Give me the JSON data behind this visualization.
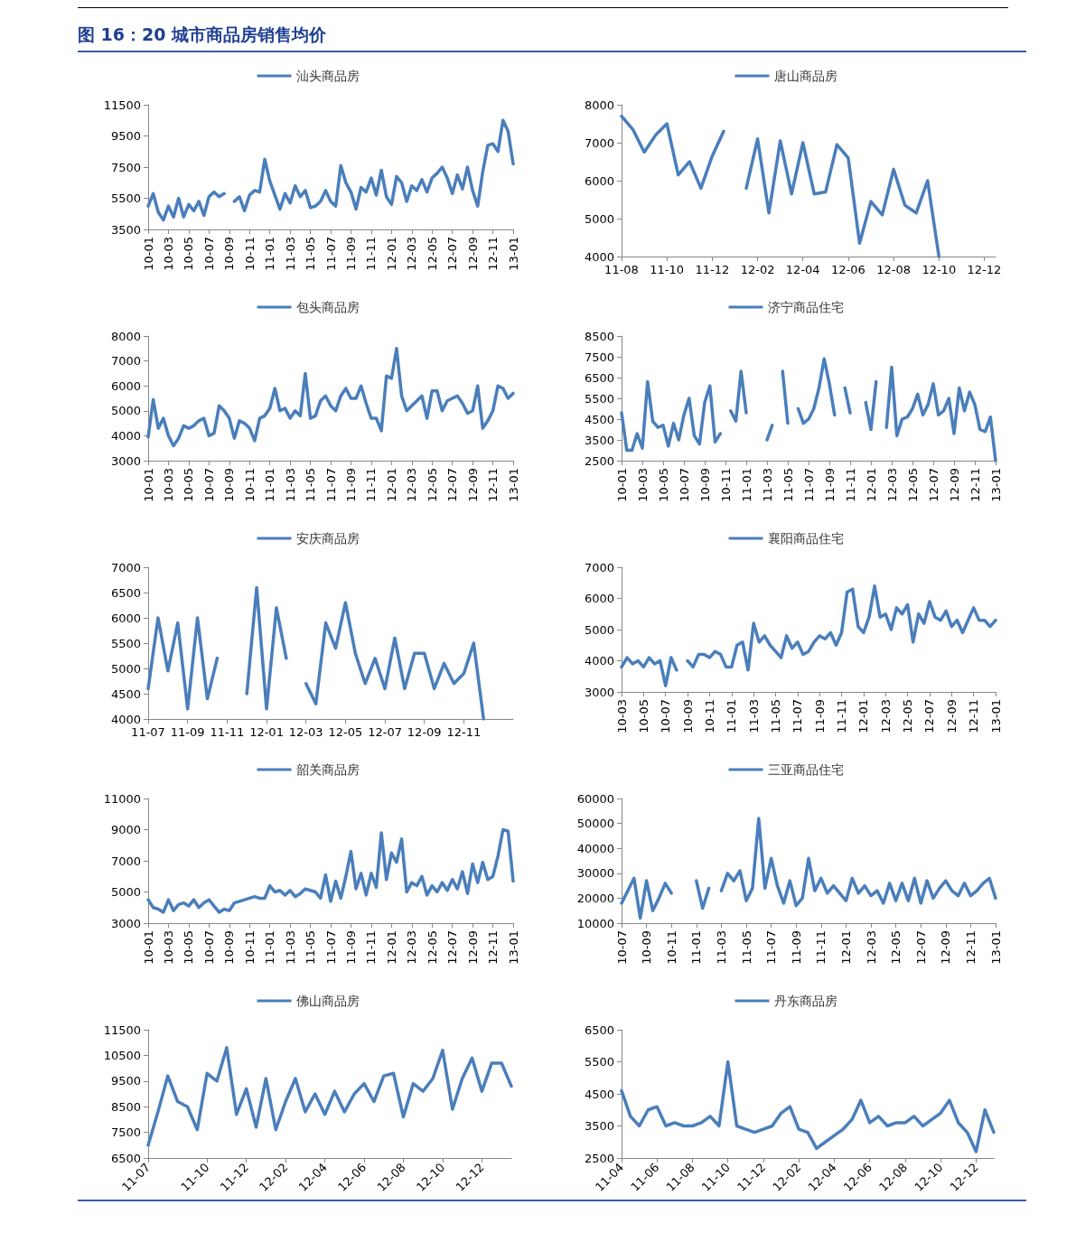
{
  "chart_data": [
    {
      "type": "other",
      "title": "图 16：20 城市商品房销售均价"
    },
    {
      "type": "line",
      "legend": "top",
      "ylim": [
        3500,
        11500
      ],
      "yticks": [
        3500,
        5500,
        7500,
        9500,
        11500
      ],
      "categories": [
        "10-01",
        null,
        null,
        null,
        "10-03",
        null,
        null,
        null,
        "10-05",
        null,
        null,
        null,
        "10-07",
        null,
        null,
        null,
        "10-09",
        null,
        null,
        null,
        "10-11",
        null,
        null,
        null,
        "11-01",
        null,
        null,
        null,
        "11-03",
        null,
        null,
        null,
        "11-05",
        null,
        null,
        null,
        "11-07",
        null,
        null,
        null,
        "11-09",
        null,
        null,
        null,
        "11-11",
        null,
        null,
        null,
        "12-01",
        null,
        null,
        null,
        "12-03",
        null,
        null,
        null,
        "12-05",
        null,
        null,
        null,
        "12-07",
        null,
        null,
        null,
        "12-09",
        null,
        null,
        null,
        "12-11",
        null,
        null,
        null,
        "13-01"
      ],
      "series": [
        {
          "name": "汕头商品房",
          "color": "#4a7ebb",
          "values": [
            5000,
            5800,
            4600,
            4100,
            5000,
            4300,
            5500,
            4300,
            5100,
            4700,
            5300,
            4400,
            5600,
            5900,
            5600,
            5800,
            null,
            5300,
            5600,
            4700,
            5700,
            6000,
            5900,
            8000,
            6600,
            5700,
            4800,
            5800,
            5200,
            6300,
            5600,
            6000,
            4900,
            5000,
            5300,
            6000,
            5300,
            5000,
            7600,
            6500,
            5900,
            4800,
            6200,
            5900,
            6800,
            5700,
            7300,
            5600,
            5100,
            6900,
            6500,
            5300,
            6300,
            6000,
            6700,
            5900,
            6800,
            7100,
            7500,
            6800,
            5800,
            7000,
            6100,
            7500,
            6000,
            5000,
            7200,
            8900,
            9000,
            8500,
            10500,
            9800,
            7700
          ]
        }
      ]
    },
    {
      "type": "line",
      "legend": "top",
      "ylim": [
        4000,
        8000
      ],
      "yticks": [
        4000,
        5000,
        6000,
        7000,
        8000
      ],
      "categories": [
        "11-08",
        null,
        null,
        null,
        "11-10",
        null,
        null,
        null,
        "11-12",
        null,
        null,
        null,
        "12-02",
        null,
        null,
        null,
        "12-04",
        null,
        null,
        null,
        "12-06",
        null,
        null,
        null,
        "12-08",
        null,
        null,
        null,
        "12-10",
        null,
        null,
        null,
        "12-12",
        null
      ],
      "series": [
        {
          "name": "唐山商品房",
          "color": "#4a7ebb",
          "values": [
            7700,
            7350,
            6750,
            7200,
            7500,
            6150,
            6500,
            5800,
            6650,
            7300,
            null,
            5800,
            7100,
            5150,
            7050,
            5650,
            7000,
            5650,
            5700,
            6950,
            6600,
            4350,
            5450,
            5100,
            6300,
            5350,
            5150,
            6000,
            4000,
            null,
            null,
            null,
            null,
            null
          ]
        }
      ]
    },
    {
      "type": "line",
      "legend": "top",
      "ylim": [
        3000,
        8000
      ],
      "yticks": [
        3000,
        4000,
        5000,
        6000,
        7000,
        8000
      ],
      "categories": [
        "10-01",
        null,
        null,
        null,
        "10-03",
        null,
        null,
        null,
        "10-05",
        null,
        null,
        null,
        "10-07",
        null,
        null,
        null,
        "10-09",
        null,
        null,
        null,
        "10-11",
        null,
        null,
        null,
        "11-01",
        null,
        null,
        null,
        "11-03",
        null,
        null,
        null,
        "11-05",
        null,
        null,
        null,
        "11-07",
        null,
        null,
        null,
        "11-09",
        null,
        null,
        null,
        "11-11",
        null,
        null,
        null,
        "12-01",
        null,
        null,
        null,
        "12-03",
        null,
        null,
        null,
        "12-05",
        null,
        null,
        null,
        "12-07",
        null,
        null,
        null,
        "12-09",
        null,
        null,
        null,
        "12-11",
        null,
        null,
        null,
        "13-01"
      ],
      "series": [
        {
          "name": "包头商品房",
          "color": "#4a7ebb",
          "values": [
            3950,
            5450,
            4300,
            4700,
            4000,
            3600,
            3900,
            4400,
            4300,
            4400,
            4600,
            4700,
            4000,
            4100,
            5200,
            5000,
            4700,
            3900,
            4600,
            4500,
            4300,
            3800,
            4700,
            4800,
            5100,
            5900,
            5000,
            5100,
            4700,
            5000,
            4800,
            6500,
            4700,
            4800,
            5400,
            5600,
            5200,
            5000,
            5600,
            5900,
            5500,
            5500,
            6000,
            5300,
            4700,
            4700,
            4200,
            6400,
            6300,
            7500,
            5600,
            5000,
            5200,
            5400,
            5600,
            4700,
            5800,
            5800,
            5000,
            5400,
            5500,
            5600,
            5300,
            4900,
            5000,
            6000,
            4300,
            4600,
            5000,
            6000,
            5900,
            5500,
            5700
          ]
        }
      ]
    },
    {
      "type": "line",
      "legend": "top",
      "ylim": [
        2500,
        8500
      ],
      "yticks": [
        2500,
        3500,
        4500,
        5500,
        6500,
        7500,
        8500
      ],
      "categories": [
        "10-01",
        null,
        null,
        null,
        "10-03",
        null,
        null,
        null,
        "10-05",
        null,
        null,
        null,
        "10-07",
        null,
        null,
        null,
        "10-09",
        null,
        null,
        null,
        "10-11",
        null,
        null,
        null,
        "11-01",
        null,
        null,
        null,
        "11-03",
        null,
        null,
        null,
        "11-05",
        null,
        null,
        null,
        "11-07",
        null,
        null,
        null,
        "11-09",
        null,
        null,
        null,
        "11-11",
        null,
        null,
        null,
        "12-01",
        null,
        null,
        null,
        "12-03",
        null,
        null,
        null,
        "12-05",
        null,
        null,
        null,
        "12-07",
        null,
        null,
        null,
        "12-09",
        null,
        null,
        null,
        "12-11",
        null,
        null,
        null,
        "13-01"
      ],
      "series": [
        {
          "name": "济宁商品住宅",
          "color": "#4a7ebb",
          "values": [
            4800,
            3000,
            3000,
            3800,
            3100,
            6300,
            4400,
            4100,
            4200,
            3200,
            4300,
            3500,
            4700,
            5500,
            3700,
            3300,
            5300,
            6100,
            3400,
            3800,
            null,
            4900,
            4400,
            6800,
            4800,
            null,
            null,
            null,
            3500,
            4200,
            null,
            6800,
            4300,
            null,
            5000,
            4300,
            4500,
            5000,
            6000,
            7400,
            6200,
            4700,
            null,
            6000,
            4800,
            null,
            null,
            5300,
            4000,
            6300,
            null,
            4100,
            7000,
            3700,
            4500,
            4600,
            5000,
            5700,
            4700,
            5200,
            6200,
            4700,
            4900,
            5500,
            3800,
            6000,
            4900,
            5800,
            5200,
            4000,
            3900,
            4600,
            2500
          ]
        }
      ]
    },
    {
      "type": "line",
      "legend": "top",
      "ylim": [
        4000,
        7000
      ],
      "yticks": [
        4000,
        4500,
        5000,
        5500,
        6000,
        6500,
        7000
      ],
      "categories": [
        "11-07",
        null,
        null,
        null,
        "11-09",
        null,
        null,
        null,
        "11-11",
        null,
        null,
        null,
        "12-01",
        null,
        null,
        null,
        "12-03",
        null,
        null,
        null,
        "12-05",
        null,
        null,
        null,
        "12-07",
        null,
        null,
        null,
        "12-09",
        null,
        null,
        null,
        "12-11",
        null,
        null,
        null,
        null,
        null
      ],
      "series": [
        {
          "name": "安庆商品房",
          "color": "#4a7ebb",
          "values": [
            4600,
            6000,
            4950,
            5900,
            4200,
            6000,
            4400,
            5200,
            null,
            null,
            4500,
            6600,
            4200,
            6200,
            5200,
            null,
            4700,
            4300,
            5900,
            5400,
            6300,
            5300,
            4700,
            5200,
            4600,
            5600,
            4600,
            5300,
            5300,
            4600,
            5100,
            4700,
            4900,
            5500,
            4000,
            null,
            null,
            null
          ]
        }
      ]
    },
    {
      "type": "line",
      "legend": "top",
      "ylim": [
        3000,
        7000
      ],
      "yticks": [
        3000,
        4000,
        5000,
        6000,
        7000
      ],
      "categories": [
        "10-03",
        null,
        null,
        null,
        "10-05",
        null,
        null,
        null,
        "10-07",
        null,
        null,
        null,
        "10-09",
        null,
        null,
        null,
        "10-11",
        null,
        null,
        null,
        "11-01",
        null,
        null,
        null,
        "11-03",
        null,
        null,
        null,
        "11-05",
        null,
        null,
        null,
        "11-07",
        null,
        null,
        null,
        "11-09",
        null,
        null,
        null,
        "11-11",
        null,
        null,
        null,
        "12-01",
        null,
        null,
        null,
        "12-03",
        null,
        null,
        null,
        "12-05",
        null,
        null,
        null,
        "12-07",
        null,
        null,
        null,
        "12-09",
        null,
        null,
        null,
        "12-11",
        null,
        null,
        null,
        "13-01"
      ],
      "series": [
        {
          "name": "襄阳商品住宅",
          "color": "#4a7ebb",
          "values": [
            3800,
            4100,
            3900,
            4000,
            3800,
            4100,
            3900,
            4000,
            3200,
            4100,
            3700,
            null,
            4000,
            3800,
            4200,
            4200,
            4100,
            4300,
            4200,
            3800,
            3800,
            4500,
            4600,
            3700,
            5200,
            4600,
            4800,
            4500,
            4300,
            4100,
            4800,
            4400,
            4600,
            4200,
            4300,
            4600,
            4800,
            4700,
            4900,
            4500,
            4900,
            6200,
            6300,
            5100,
            4900,
            5400,
            6400,
            5400,
            5500,
            5000,
            5700,
            5500,
            5800,
            4600,
            5500,
            5200,
            5900,
            5400,
            5300,
            5600,
            5100,
            5300,
            4900,
            5300,
            5700,
            5300,
            5300,
            5100,
            5300
          ]
        }
      ]
    },
    {
      "type": "line",
      "legend": "top",
      "ylim": [
        3000,
        11000
      ],
      "yticks": [
        3000,
        5000,
        7000,
        9000,
        11000
      ],
      "categories": [
        "10-01",
        null,
        null,
        null,
        "10-03",
        null,
        null,
        null,
        "10-05",
        null,
        null,
        null,
        "10-07",
        null,
        null,
        null,
        "10-09",
        null,
        null,
        null,
        "10-11",
        null,
        null,
        null,
        "11-01",
        null,
        null,
        null,
        "11-03",
        null,
        null,
        null,
        "11-05",
        null,
        null,
        null,
        "11-07",
        null,
        null,
        null,
        "11-09",
        null,
        null,
        null,
        "11-11",
        null,
        null,
        null,
        "12-01",
        null,
        null,
        null,
        "12-03",
        null,
        null,
        null,
        "12-05",
        null,
        null,
        null,
        "12-07",
        null,
        null,
        null,
        "12-09",
        null,
        null,
        null,
        "12-11",
        null,
        null,
        null,
        "13-01"
      ],
      "series": [
        {
          "name": "韶关商品房",
          "color": "#4a7ebb",
          "values": [
            4500,
            4000,
            3900,
            3700,
            4500,
            3800,
            4200,
            4300,
            4100,
            4500,
            4000,
            4300,
            4500,
            4100,
            3700,
            3900,
            3800,
            4300,
            4400,
            4500,
            4600,
            4700,
            4600,
            4600,
            5400,
            5000,
            5100,
            4800,
            5100,
            4700,
            4900,
            5200,
            5100,
            5000,
            4600,
            6100,
            4400,
            5700,
            4600,
            6000,
            7600,
            5200,
            6200,
            4800,
            6200,
            5300,
            8800,
            5800,
            7500,
            6900,
            8400,
            5000,
            5600,
            5400,
            6000,
            4800,
            5400,
            5000,
            5600,
            5100,
            5800,
            5200,
            6300,
            4900,
            6800,
            5600,
            6900,
            5800,
            6000,
            7300,
            9000,
            8900,
            5700
          ]
        }
      ]
    },
    {
      "type": "line",
      "legend": "top",
      "ylim": [
        10000,
        60000
      ],
      "yticks": [
        10000,
        20000,
        30000,
        40000,
        50000,
        60000
      ],
      "categories": [
        "10-07",
        null,
        null,
        null,
        "10-09",
        null,
        null,
        null,
        "10-11",
        null,
        null,
        null,
        "11-01",
        null,
        null,
        null,
        "11-03",
        null,
        null,
        null,
        "11-05",
        null,
        null,
        null,
        "11-07",
        null,
        null,
        null,
        "11-09",
        null,
        null,
        null,
        "11-11",
        null,
        null,
        null,
        "12-01",
        null,
        null,
        null,
        "12-03",
        null,
        null,
        null,
        "12-05",
        null,
        null,
        null,
        "12-07",
        null,
        null,
        null,
        "12-09",
        null,
        null,
        null,
        "12-11",
        null,
        null,
        null,
        "13-01"
      ],
      "series": [
        {
          "name": "三亚商品住宅",
          "color": "#4a7ebb",
          "values": [
            18000,
            23000,
            28000,
            12000,
            27000,
            15000,
            20000,
            26000,
            22000,
            null,
            null,
            null,
            27000,
            16000,
            24000,
            null,
            23000,
            30000,
            27000,
            31000,
            19000,
            24000,
            52000,
            24000,
            36000,
            25000,
            18000,
            27000,
            17000,
            20000,
            36000,
            23000,
            28000,
            22000,
            25000,
            22000,
            19000,
            28000,
            22000,
            25000,
            21000,
            23000,
            18000,
            26000,
            19000,
            26000,
            19000,
            28000,
            18000,
            27000,
            20000,
            24000,
            27000,
            23000,
            21000,
            26000,
            21000,
            23000,
            26000,
            28000,
            20000
          ]
        }
      ]
    },
    {
      "type": "line",
      "legend": "top",
      "ylim": [
        6500,
        11500
      ],
      "yticks": [
        6500,
        7500,
        8500,
        9500,
        10500,
        11500
      ],
      "categories": [
        "11-07",
        null,
        null,
        null,
        null,
        null,
        "11-10",
        null,
        null,
        null,
        "11-12",
        null,
        null,
        null,
        "12-02",
        null,
        null,
        null,
        "12-04",
        null,
        null,
        null,
        "12-06",
        null,
        null,
        null,
        "12-08",
        null,
        null,
        null,
        "12-10",
        null,
        null,
        null,
        "12-12",
        null,
        null,
        null
      ],
      "series": [
        {
          "name": "佛山商品房",
          "color": "#4a7ebb",
          "values": [
            7000,
            8300,
            9700,
            8700,
            8500,
            7600,
            9800,
            9500,
            10800,
            8200,
            9200,
            7700,
            9600,
            7600,
            8700,
            9600,
            8300,
            9000,
            8200,
            9100,
            8300,
            9000,
            9400,
            8700,
            9700,
            9800,
            8100,
            9400,
            9100,
            9600,
            10700,
            8400,
            9600,
            10400,
            9100,
            10200,
            10200,
            9300
          ]
        }
      ]
    },
    {
      "type": "line",
      "legend": "top",
      "ylim": [
        2500,
        6500
      ],
      "yticks": [
        2500,
        3500,
        4500,
        5500,
        6500
      ],
      "categories": [
        "11-04",
        null,
        null,
        null,
        "11-06",
        null,
        null,
        null,
        "11-08",
        null,
        null,
        null,
        "11-10",
        null,
        null,
        null,
        "11-12",
        null,
        null,
        null,
        "12-02",
        null,
        null,
        null,
        "12-04",
        null,
        null,
        null,
        "12-06",
        null,
        null,
        null,
        "12-08",
        null,
        null,
        null,
        "12-10",
        null,
        null,
        null,
        "12-12",
        null,
        null
      ],
      "series": [
        {
          "name": "丹东商品房",
          "color": "#4a7ebb",
          "values": [
            4600,
            3800,
            3500,
            4000,
            4100,
            3500,
            3600,
            3500,
            3500,
            3600,
            3800,
            3500,
            5500,
            3500,
            3400,
            3300,
            3400,
            3500,
            3900,
            4100,
            3400,
            3300,
            2800,
            3000,
            3200,
            3400,
            3700,
            4300,
            3600,
            3800,
            3500,
            3600,
            3600,
            3800,
            3500,
            3700,
            3900,
            4300,
            3600,
            3300,
            2700,
            4000,
            3300
          ]
        }
      ]
    }
  ]
}
